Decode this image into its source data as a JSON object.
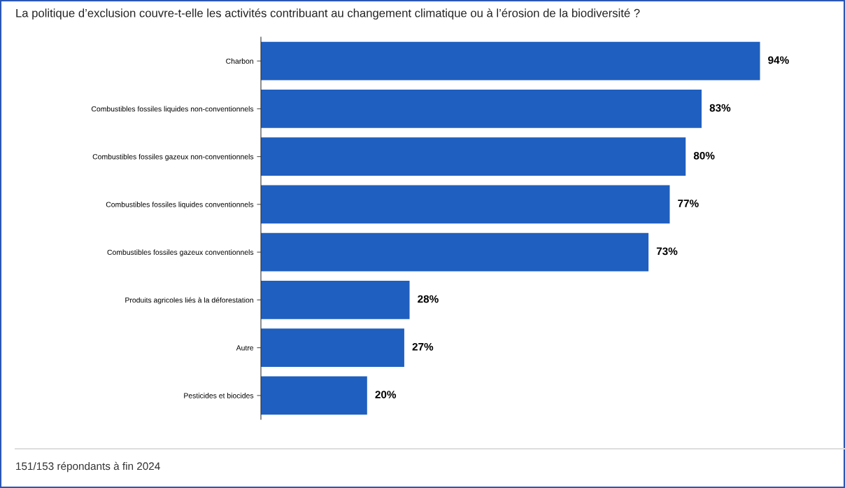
{
  "chart_data": {
    "type": "bar",
    "orientation": "horizontal",
    "title": "La politique d’exclusion couvre-t-elle les activités contribuant au changement climatique ou à l’érosion de la biodiversité ?",
    "categories": [
      "Charbon",
      "Combustibles fossiles liquides non-conventionnels",
      "Combustibles fossiles gazeux non-conventionnels",
      "Combustibles fossiles liquides conventionnels",
      "Combustibles fossiles gazeux conventionnels",
      "Produits agricoles liés à la déforestation",
      "Autre",
      "Pesticides et biocides"
    ],
    "values": [
      94,
      83,
      80,
      77,
      73,
      28,
      27,
      20
    ],
    "value_labels": [
      "94%",
      "83%",
      "80%",
      "77%",
      "73%",
      "28%",
      "27%",
      "20%"
    ],
    "color": "#1f5fbf",
    "annotations": [
      "151/153 répondants à fin 2024"
    ]
  }
}
